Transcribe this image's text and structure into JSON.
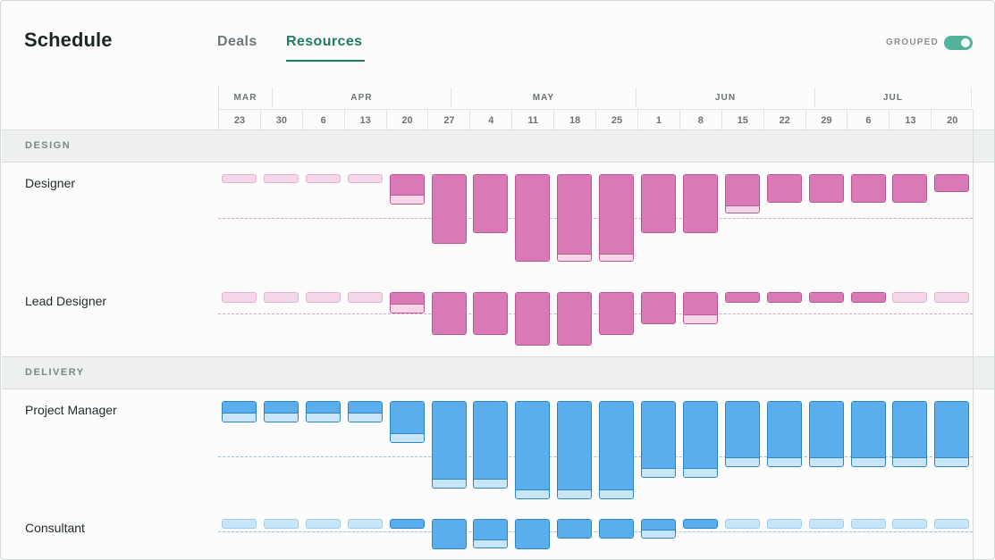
{
  "header": {
    "title": "Schedule",
    "tabs": [
      {
        "label": "Deals",
        "active": false
      },
      {
        "label": "Resources",
        "active": true
      }
    ],
    "grouped_label": "GROUPED",
    "grouped_on": true
  },
  "timeline": {
    "months": [
      "MAR",
      "APR",
      "MAY",
      "JUN",
      "JUL"
    ],
    "weeks": [
      "23",
      "30",
      "6",
      "13",
      "20",
      "27",
      "4",
      "11",
      "18",
      "25",
      "1",
      "8",
      "15",
      "22",
      "29",
      "6",
      "13",
      "20"
    ]
  },
  "colors": {
    "design_fill": "#d97ab6",
    "design_light": "#f5d6e8",
    "design_border": "#b9558f",
    "design_dash": "#d9a8c5",
    "delivery_fill": "#5aaeee",
    "delivery_light": "#c9e5f8",
    "delivery_border": "#2f84c2",
    "delivery_dash": "#9cc2dd"
  },
  "groups": [
    {
      "label": "DESIGN",
      "palette": "design",
      "roles": [
        {
          "label": "Designer",
          "capacity": 1.0,
          "weeks": [
            {
              "booked": 0,
              "tentative": 0.2
            },
            {
              "booked": 0,
              "tentative": 0.2
            },
            {
              "booked": 0,
              "tentative": 0.2
            },
            {
              "booked": 0,
              "tentative": 0.2
            },
            {
              "booked": 0.45,
              "tentative": 0.25
            },
            {
              "booked": 1.6,
              "tentative": 0
            },
            {
              "booked": 1.35,
              "tentative": 0
            },
            {
              "booked": 2.0,
              "tentative": 0
            },
            {
              "booked": 1.8,
              "tentative": 0.2
            },
            {
              "booked": 1.8,
              "tentative": 0.2
            },
            {
              "booked": 1.35,
              "tentative": 0
            },
            {
              "booked": 1.35,
              "tentative": 0
            },
            {
              "booked": 0.7,
              "tentative": 0.2
            },
            {
              "booked": 0.65,
              "tentative": 0
            },
            {
              "booked": 0.65,
              "tentative": 0
            },
            {
              "booked": 0.65,
              "tentative": 0
            },
            {
              "booked": 0.65,
              "tentative": 0
            },
            {
              "booked": 0.4,
              "tentative": 0
            }
          ]
        },
        {
          "label": "Lead Designer",
          "capacity": 1.0,
          "weeks": [
            {
              "booked": 0,
              "tentative": 0.5
            },
            {
              "booked": 0,
              "tentative": 0.5
            },
            {
              "booked": 0,
              "tentative": 0.5
            },
            {
              "booked": 0,
              "tentative": 0.5
            },
            {
              "booked": 0.5,
              "tentative": 0.5
            },
            {
              "booked": 2.0,
              "tentative": 0
            },
            {
              "booked": 2.0,
              "tentative": 0
            },
            {
              "booked": 2.5,
              "tentative": 0
            },
            {
              "booked": 2.5,
              "tentative": 0
            },
            {
              "booked": 2.0,
              "tentative": 0
            },
            {
              "booked": 1.5,
              "tentative": 0
            },
            {
              "booked": 1.0,
              "tentative": 0.5
            },
            {
              "booked": 0.5,
              "tentative": 0
            },
            {
              "booked": 0.5,
              "tentative": 0
            },
            {
              "booked": 0.5,
              "tentative": 0
            },
            {
              "booked": 0.5,
              "tentative": 0
            },
            {
              "booked": 0,
              "tentative": 0.5
            },
            {
              "booked": 0,
              "tentative": 0.5
            }
          ]
        }
      ]
    },
    {
      "label": "DELIVERY",
      "palette": "delivery",
      "roles": [
        {
          "label": "Project Manager",
          "capacity": 1.0,
          "weeks": [
            {
              "booked": 0.19,
              "tentative": 0.19
            },
            {
              "booked": 0.19,
              "tentative": 0.19
            },
            {
              "booked": 0.19,
              "tentative": 0.19
            },
            {
              "booked": 0.19,
              "tentative": 0.19
            },
            {
              "booked": 0.56,
              "tentative": 0.19
            },
            {
              "booked": 1.39,
              "tentative": 0.2
            },
            {
              "booked": 1.39,
              "tentative": 0.2
            },
            {
              "booked": 1.58,
              "tentative": 0.2
            },
            {
              "booked": 1.58,
              "tentative": 0.2
            },
            {
              "booked": 1.58,
              "tentative": 0.2
            },
            {
              "booked": 1.19,
              "tentative": 0.2
            },
            {
              "booked": 1.19,
              "tentative": 0.2
            },
            {
              "booked": 1.0,
              "tentative": 0.19
            },
            {
              "booked": 1.0,
              "tentative": 0.19
            },
            {
              "booked": 1.0,
              "tentative": 0.19
            },
            {
              "booked": 1.0,
              "tentative": 0.19
            },
            {
              "booked": 1.0,
              "tentative": 0.19
            },
            {
              "booked": 1.0,
              "tentative": 0.19
            }
          ]
        },
        {
          "label": "Consultant",
          "capacity": 1.0,
          "weeks": [
            {
              "booked": 0,
              "tentative": 0.8
            },
            {
              "booked": 0,
              "tentative": 0.8
            },
            {
              "booked": 0,
              "tentative": 0.8
            },
            {
              "booked": 0,
              "tentative": 0.8
            },
            {
              "booked": 0.8,
              "tentative": 0
            },
            {
              "booked": 2.4,
              "tentative": 0
            },
            {
              "booked": 1.6,
              "tentative": 0.8
            },
            {
              "booked": 2.4,
              "tentative": 0
            },
            {
              "booked": 1.6,
              "tentative": 0
            },
            {
              "booked": 1.6,
              "tentative": 0
            },
            {
              "booked": 0.8,
              "tentative": 0.8
            },
            {
              "booked": 0.8,
              "tentative": 0
            },
            {
              "booked": 0,
              "tentative": 0.8
            },
            {
              "booked": 0,
              "tentative": 0.8
            },
            {
              "booked": 0,
              "tentative": 0.8
            },
            {
              "booked": 0,
              "tentative": 0.8
            },
            {
              "booked": 0,
              "tentative": 0.8
            },
            {
              "booked": 0,
              "tentative": 0.8
            }
          ]
        }
      ]
    }
  ]
}
